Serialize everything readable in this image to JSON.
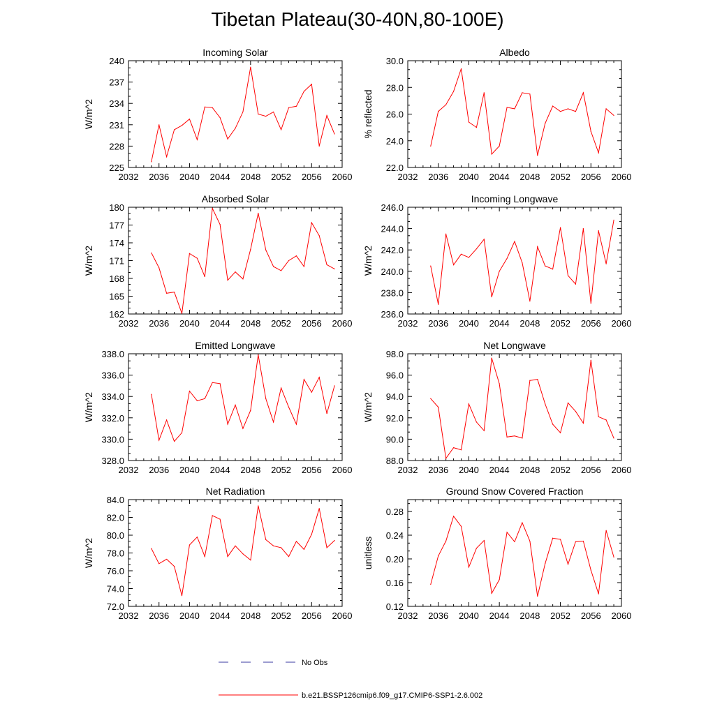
{
  "figure": {
    "title": "Tibetan Plateau(30-40N,80-100E)"
  },
  "legend": {
    "obs_label": "No Obs",
    "obs_color": "#3a3aa0",
    "model_label": "b.e21.BSSP126cmip6.f09_g17.CMIP6-SSP1-2.6.002",
    "model_color": "#ff0000"
  },
  "chart_data": [
    {
      "type": "line",
      "title": "Incoming Solar",
      "ylabel": "W/m^2",
      "xlim": [
        2032,
        2060
      ],
      "xticks": [
        "2032",
        "2036",
        "2040",
        "2044",
        "2048",
        "2052",
        "2056",
        "2060"
      ],
      "ylim": [
        225,
        240
      ],
      "yticks": [
        "225",
        "228",
        "231",
        "234",
        "237",
        "240"
      ],
      "x": [
        2035,
        2036,
        2037,
        2038,
        2039,
        2040,
        2041,
        2042,
        2043,
        2044,
        2045,
        2046,
        2047,
        2048,
        2049,
        2050,
        2051,
        2052,
        2053,
        2054,
        2055,
        2056,
        2057,
        2058,
        2059
      ],
      "series": [
        {
          "values": [
            225.8,
            231.0,
            226.5,
            230.3,
            230.9,
            231.8,
            228.9,
            233.5,
            233.4,
            232.0,
            229.0,
            230.5,
            232.8,
            239.1,
            232.5,
            232.2,
            232.8,
            230.3,
            233.4,
            233.6,
            235.7,
            236.7,
            228.0,
            232.3,
            229.7
          ]
        }
      ]
    },
    {
      "type": "line",
      "title": "Albedo",
      "ylabel": "% reflected",
      "xlim": [
        2032,
        2060
      ],
      "xticks": [
        "2032",
        "2036",
        "2040",
        "2044",
        "2048",
        "2052",
        "2056",
        "2060"
      ],
      "ylim": [
        22.0,
        30.0
      ],
      "yticks": [
        "22.0",
        "24.0",
        "26.0",
        "28.0",
        "30.0"
      ],
      "x": [
        2035,
        2036,
        2037,
        2038,
        2039,
        2040,
        2041,
        2042,
        2043,
        2044,
        2045,
        2046,
        2047,
        2048,
        2049,
        2050,
        2051,
        2052,
        2053,
        2054,
        2055,
        2056,
        2057,
        2058,
        2059
      ],
      "series": [
        {
          "values": [
            23.6,
            26.2,
            26.7,
            27.7,
            29.4,
            25.4,
            25.0,
            27.6,
            23.0,
            23.6,
            26.5,
            26.4,
            27.6,
            27.5,
            22.9,
            25.3,
            26.6,
            26.2,
            26.4,
            26.2,
            27.6,
            24.7,
            23.1,
            26.4,
            25.9
          ]
        }
      ]
    },
    {
      "type": "line",
      "title": "Absorbed Solar",
      "ylabel": "W/m^2",
      "xlim": [
        2032,
        2060
      ],
      "xticks": [
        "2032",
        "2036",
        "2040",
        "2044",
        "2048",
        "2052",
        "2056",
        "2060"
      ],
      "ylim": [
        162,
        180
      ],
      "yticks": [
        "162",
        "165",
        "168",
        "171",
        "174",
        "177",
        "180"
      ],
      "x": [
        2035,
        2036,
        2037,
        2038,
        2039,
        2040,
        2041,
        2042,
        2043,
        2044,
        2045,
        2046,
        2047,
        2048,
        2049,
        2050,
        2051,
        2052,
        2053,
        2054,
        2055,
        2056,
        2057,
        2058,
        2059
      ],
      "series": [
        {
          "values": [
            172.3,
            169.8,
            165.5,
            165.7,
            162.1,
            172.2,
            171.4,
            168.3,
            179.8,
            177.1,
            167.7,
            169.1,
            167.9,
            172.9,
            179.0,
            172.8,
            170.0,
            169.3,
            171.0,
            171.8,
            170.0,
            177.4,
            175.2,
            170.3,
            169.6
          ]
        }
      ]
    },
    {
      "type": "line",
      "title": "Incoming Longwave",
      "ylabel": "W/m^2",
      "xlim": [
        2032,
        2060
      ],
      "xticks": [
        "2032",
        "2036",
        "2040",
        "2044",
        "2048",
        "2052",
        "2056",
        "2060"
      ],
      "ylim": [
        236.0,
        246.0
      ],
      "yticks": [
        "236.0",
        "238.0",
        "240.0",
        "242.0",
        "244.0",
        "246.0"
      ],
      "x": [
        2035,
        2036,
        2037,
        2038,
        2039,
        2040,
        2041,
        2042,
        2043,
        2044,
        2045,
        2046,
        2047,
        2048,
        2049,
        2050,
        2051,
        2052,
        2053,
        2054,
        2055,
        2056,
        2057,
        2058,
        2059
      ],
      "series": [
        {
          "values": [
            240.5,
            236.9,
            243.5,
            240.6,
            241.6,
            241.3,
            242.1,
            243.0,
            237.6,
            240.0,
            241.2,
            242.8,
            240.8,
            237.2,
            242.3,
            240.5,
            240.2,
            244.1,
            239.6,
            238.8,
            244.0,
            237.0,
            243.8,
            240.7,
            244.8
          ]
        }
      ]
    },
    {
      "type": "line",
      "title": "Emitted Longwave",
      "ylabel": "W/m^2",
      "xlim": [
        2032,
        2060
      ],
      "xticks": [
        "2032",
        "2036",
        "2040",
        "2044",
        "2048",
        "2052",
        "2056",
        "2060"
      ],
      "ylim": [
        328.0,
        338.0
      ],
      "yticks": [
        "328.0",
        "330.0",
        "332.0",
        "334.0",
        "336.0",
        "338.0"
      ],
      "x": [
        2035,
        2036,
        2037,
        2038,
        2039,
        2040,
        2041,
        2042,
        2043,
        2044,
        2045,
        2046,
        2047,
        2048,
        2049,
        2050,
        2051,
        2052,
        2053,
        2054,
        2055,
        2056,
        2057,
        2058,
        2059
      ],
      "series": [
        {
          "values": [
            334.2,
            329.9,
            331.8,
            329.8,
            330.6,
            334.5,
            333.6,
            333.8,
            335.3,
            335.2,
            331.4,
            333.2,
            331.0,
            332.7,
            337.9,
            333.8,
            331.6,
            334.8,
            333.0,
            331.4,
            335.6,
            334.4,
            335.8,
            332.4,
            335.0
          ]
        }
      ]
    },
    {
      "type": "line",
      "title": "Net Longwave",
      "ylabel": "W/m^2",
      "xlim": [
        2032,
        2060
      ],
      "xticks": [
        "2032",
        "2036",
        "2040",
        "2044",
        "2048",
        "2052",
        "2056",
        "2060"
      ],
      "ylim": [
        88.0,
        98.0
      ],
      "yticks": [
        "88.0",
        "90.0",
        "92.0",
        "94.0",
        "96.0",
        "98.0"
      ],
      "x": [
        2035,
        2036,
        2037,
        2038,
        2039,
        2040,
        2041,
        2042,
        2043,
        2044,
        2045,
        2046,
        2047,
        2048,
        2049,
        2050,
        2051,
        2052,
        2053,
        2054,
        2055,
        2056,
        2057,
        2058,
        2059
      ],
      "series": [
        {
          "values": [
            93.8,
            93.0,
            88.2,
            89.2,
            89.0,
            93.3,
            91.6,
            90.8,
            97.6,
            95.2,
            90.2,
            90.3,
            90.1,
            95.5,
            95.6,
            93.3,
            91.4,
            90.6,
            93.4,
            92.6,
            91.5,
            97.4,
            92.1,
            91.8,
            90.1
          ]
        }
      ]
    },
    {
      "type": "line",
      "title": "Net Radiation",
      "ylabel": "W/m^2",
      "xlim": [
        2032,
        2060
      ],
      "xticks": [
        "2032",
        "2036",
        "2040",
        "2044",
        "2048",
        "2052",
        "2056",
        "2060"
      ],
      "ylim": [
        72.0,
        84.0
      ],
      "yticks": [
        "72.0",
        "74.0",
        "76.0",
        "78.0",
        "80.0",
        "82.0",
        "84.0"
      ],
      "x": [
        2035,
        2036,
        2037,
        2038,
        2039,
        2040,
        2041,
        2042,
        2043,
        2044,
        2045,
        2046,
        2047,
        2048,
        2049,
        2050,
        2051,
        2052,
        2053,
        2054,
        2055,
        2056,
        2057,
        2058,
        2059
      ],
      "series": [
        {
          "values": [
            78.5,
            76.8,
            77.3,
            76.5,
            73.2,
            78.9,
            79.8,
            77.6,
            82.2,
            81.8,
            77.6,
            78.8,
            77.9,
            77.2,
            83.3,
            79.5,
            78.8,
            78.6,
            77.6,
            79.3,
            78.4,
            80.1,
            83.0,
            78.6,
            79.4
          ]
        }
      ]
    },
    {
      "type": "line",
      "title": "Ground Snow Covered Fraction",
      "ylabel": "unitless",
      "xlim": [
        2032,
        2060
      ],
      "xticks": [
        "2032",
        "2036",
        "2040",
        "2044",
        "2048",
        "2052",
        "2056",
        "2060"
      ],
      "ylim": [
        0.12,
        0.3
      ],
      "yticks": [
        "0.12",
        "0.16",
        "0.20",
        "0.24",
        "0.28"
      ],
      "x": [
        2035,
        2036,
        2037,
        2038,
        2039,
        2040,
        2041,
        2042,
        2043,
        2044,
        2045,
        2046,
        2047,
        2048,
        2049,
        2050,
        2051,
        2052,
        2053,
        2054,
        2055,
        2056,
        2057,
        2058,
        2059
      ],
      "series": [
        {
          "values": [
            0.157,
            0.205,
            0.23,
            0.272,
            0.255,
            0.186,
            0.218,
            0.231,
            0.142,
            0.165,
            0.245,
            0.229,
            0.261,
            0.23,
            0.137,
            0.192,
            0.235,
            0.233,
            0.191,
            0.229,
            0.23,
            0.181,
            0.141,
            0.248,
            0.203
          ]
        }
      ]
    }
  ]
}
